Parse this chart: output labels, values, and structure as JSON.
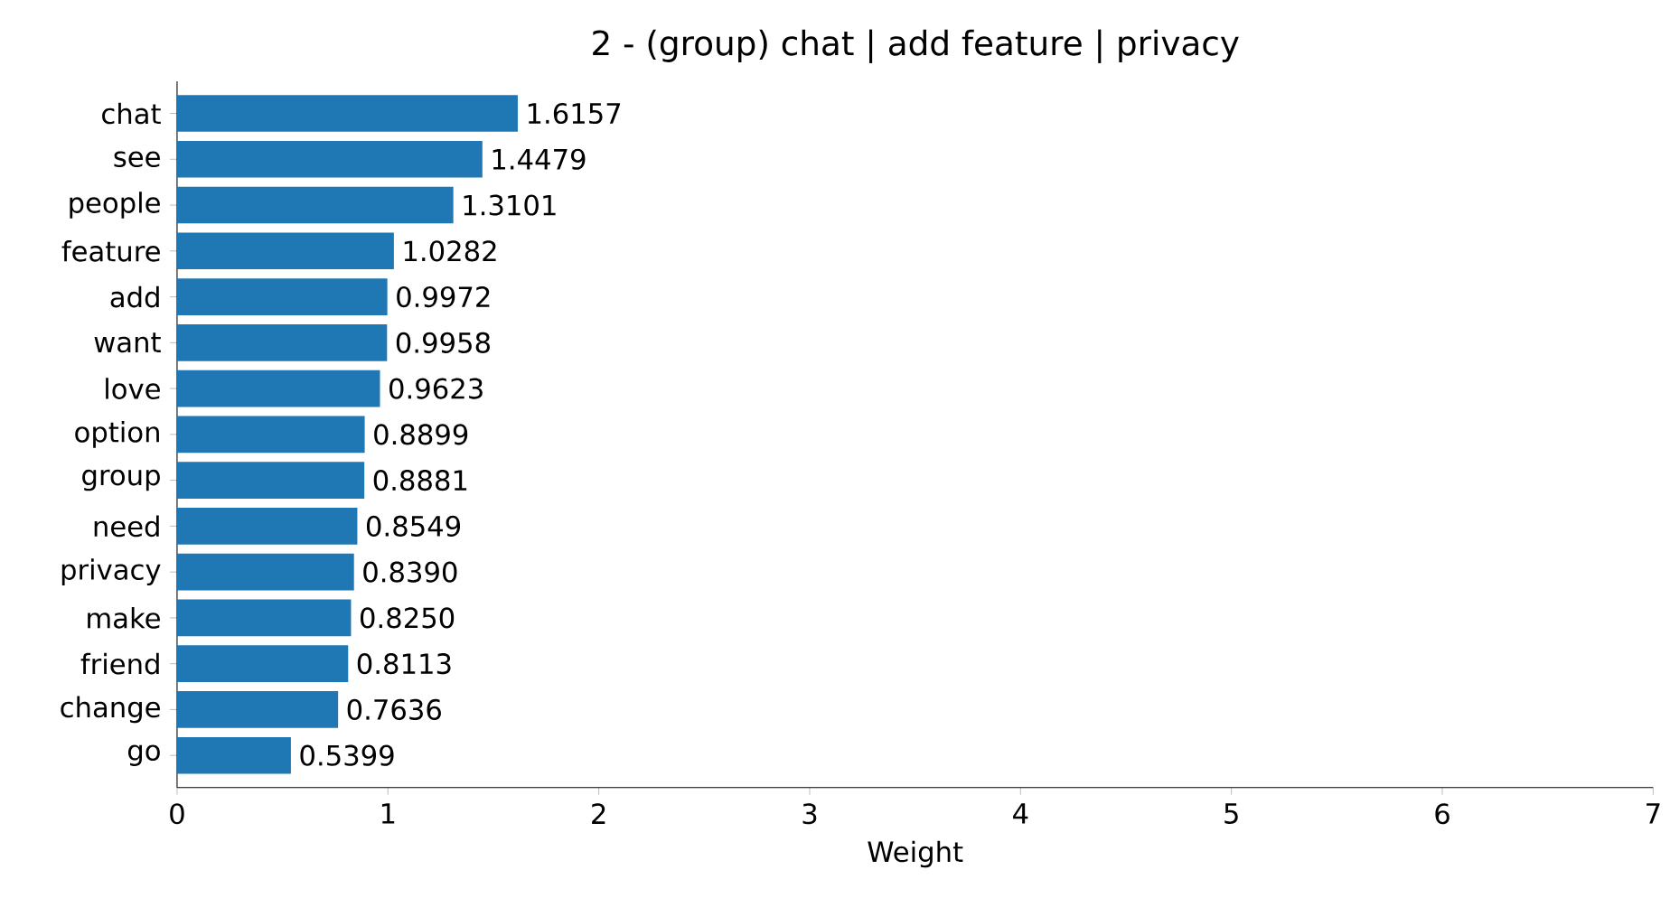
{
  "chart_data": {
    "type": "bar",
    "orientation": "horizontal",
    "title": "2 - (group) chat | add feature | privacy",
    "xlabel": "Weight",
    "categories": [
      "chat",
      "see",
      "people",
      "feature",
      "add",
      "want",
      "love",
      "option",
      "group",
      "need",
      "privacy",
      "make",
      "friend",
      "change",
      "go"
    ],
    "values": [
      1.6157,
      1.4479,
      1.3101,
      1.0282,
      0.9972,
      0.9958,
      0.9623,
      0.8899,
      0.8881,
      0.8549,
      0.839,
      0.825,
      0.8113,
      0.7636,
      0.5399
    ],
    "value_labels": [
      "1.6157",
      "1.4479",
      "1.3101",
      "1.0282",
      "0.9972",
      "0.9958",
      "0.9623",
      "0.8899",
      "0.8881",
      "0.8549",
      "0.8390",
      "0.8250",
      "0.8113",
      "0.7636",
      "0.5399"
    ],
    "color": "#1f77b4",
    "xlim": [
      0,
      7
    ],
    "xticks": [
      0,
      1,
      2,
      3,
      4,
      5,
      6,
      7
    ]
  }
}
